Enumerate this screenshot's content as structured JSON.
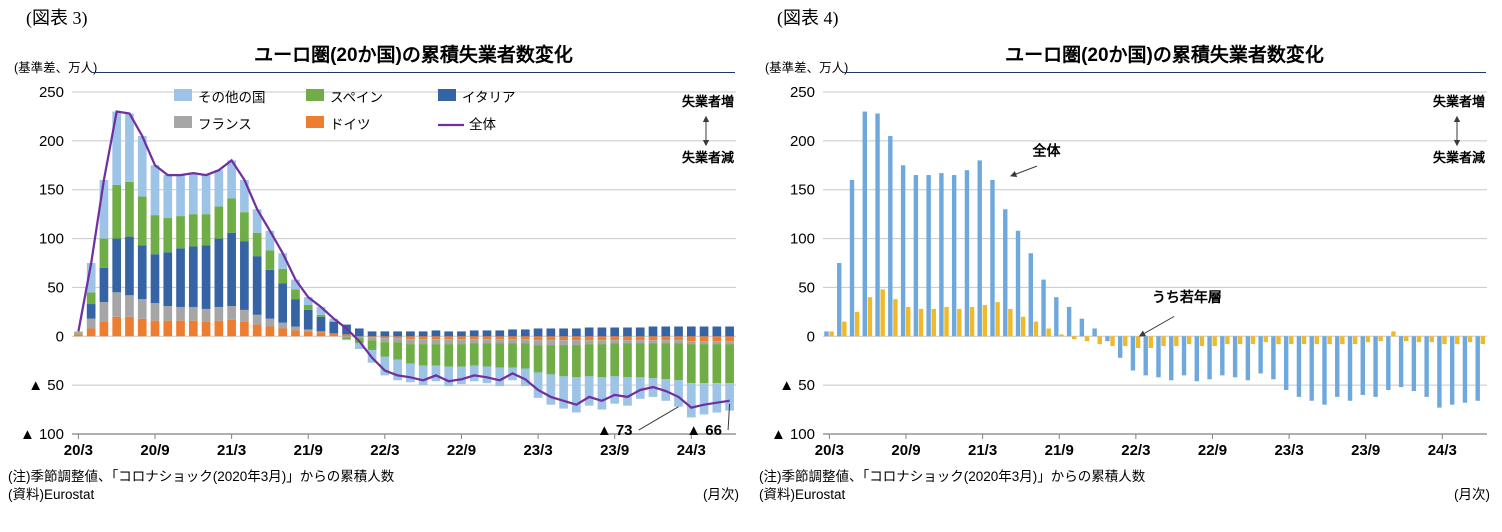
{
  "page": {
    "background": "#FFFFFF"
  },
  "chart_data": [
    {
      "figure_label": "(図表 3)",
      "title": "ユーロ圏(20か国)の累積失業者数変化",
      "unit_label": "(基準差、万人)",
      "freq_label": "(月次)",
      "notes": [
        "(注)季節調整値、「コロナショック(2020年3月)」からの累積人数",
        "(資料)Eurostat"
      ],
      "type": "bar",
      "stacked": true,
      "grid": true,
      "ylim": [
        -100,
        250
      ],
      "y_ticks": [
        250,
        200,
        150,
        100,
        50,
        0,
        -50,
        -100
      ],
      "x": [
        "20/3",
        "20/4",
        "20/5",
        "20/6",
        "20/7",
        "20/8",
        "20/9",
        "20/10",
        "20/11",
        "20/12",
        "21/1",
        "21/2",
        "21/3",
        "21/4",
        "21/5",
        "21/6",
        "21/7",
        "21/8",
        "21/9",
        "21/10",
        "21/11",
        "21/12",
        "22/1",
        "22/2",
        "22/3",
        "22/4",
        "22/5",
        "22/6",
        "22/7",
        "22/8",
        "22/9",
        "22/10",
        "22/11",
        "22/12",
        "23/1",
        "23/2",
        "23/3",
        "23/4",
        "23/5",
        "23/6",
        "23/7",
        "23/8",
        "23/9",
        "23/10",
        "23/11",
        "23/12",
        "24/1",
        "24/2",
        "24/3",
        "24/4",
        "24/5",
        "24/6"
      ],
      "x_tick_labels": [
        "20/3",
        "20/9",
        "21/3",
        "21/9",
        "22/3",
        "22/9",
        "23/3",
        "23/9",
        "24/3"
      ],
      "series": [
        {
          "name": "ドイツ",
          "color": "#ED7D31",
          "values": [
            2,
            8,
            15,
            20,
            20,
            18,
            16,
            16,
            16,
            16,
            15,
            16,
            17,
            15,
            12,
            10,
            8,
            6,
            5,
            4,
            3,
            2,
            0,
            -1,
            -2,
            -2,
            -3,
            -3,
            -3,
            -3,
            -3,
            -3,
            -3,
            -3,
            -3,
            -3,
            -4,
            -4,
            -4,
            -4,
            -4,
            -4,
            -4,
            -4,
            -4,
            -4,
            -4,
            -4,
            -5,
            -5,
            -5,
            -5
          ]
        },
        {
          "name": "フランス",
          "color": "#A6A6A6",
          "values": [
            1,
            10,
            20,
            25,
            22,
            20,
            18,
            15,
            14,
            14,
            13,
            14,
            14,
            12,
            10,
            8,
            6,
            4,
            2,
            1,
            0,
            -1,
            -2,
            -3,
            -4,
            -4,
            -5,
            -5,
            -5,
            -5,
            -5,
            -4,
            -4,
            -4,
            -4,
            -4,
            -5,
            -5,
            -5,
            -5,
            -4,
            -4,
            -3,
            -3,
            -3,
            -3,
            -3,
            -3,
            -3,
            -3,
            -3,
            -3
          ]
        },
        {
          "name": "イタリア",
          "color": "#3563A4",
          "values": [
            0,
            15,
            35,
            55,
            60,
            55,
            50,
            55,
            60,
            62,
            65,
            70,
            75,
            70,
            60,
            50,
            40,
            28,
            20,
            15,
            12,
            10,
            8,
            5,
            5,
            5,
            5,
            5,
            6,
            5,
            5,
            6,
            6,
            6,
            7,
            7,
            8,
            8,
            8,
            8,
            9,
            9,
            9,
            9,
            9,
            10,
            10,
            10,
            10,
            10,
            10,
            10
          ]
        },
        {
          "name": "スペイン",
          "color": "#70AD47",
          "values": [
            1,
            12,
            30,
            55,
            56,
            50,
            40,
            35,
            33,
            33,
            32,
            33,
            35,
            30,
            24,
            20,
            15,
            10,
            5,
            2,
            0,
            -2,
            -5,
            -10,
            -15,
            -18,
            -20,
            -22,
            -22,
            -23,
            -23,
            -23,
            -24,
            -25,
            -25,
            -26,
            -28,
            -30,
            -32,
            -33,
            -33,
            -34,
            -34,
            -35,
            -35,
            -36,
            -37,
            -38,
            -40,
            -40,
            -40,
            -40
          ]
        },
        {
          "name": "その他の国",
          "color": "#9DC3E6",
          "values": [
            1,
            30,
            60,
            75,
            70,
            62,
            51,
            44,
            42,
            42,
            40,
            37,
            39,
            33,
            24,
            20,
            16,
            10,
            8,
            8,
            3,
            -1,
            -6,
            -13,
            -19,
            -21,
            -19,
            -20,
            -16,
            -20,
            -18,
            -16,
            -17,
            -19,
            -13,
            -18,
            -26,
            -31,
            -33,
            -36,
            -30,
            -33,
            -28,
            -29,
            -22,
            -19,
            -22,
            -27,
            -35,
            -32,
            -30,
            -28
          ]
        }
      ],
      "line_series": {
        "name": "全体",
        "color": "#7030A0",
        "values": [
          5,
          75,
          160,
          230,
          228,
          205,
          175,
          165,
          165,
          167,
          165,
          170,
          180,
          160,
          130,
          108,
          85,
          58,
          40,
          30,
          18,
          8,
          -5,
          -22,
          -35,
          -40,
          -42,
          -45,
          -40,
          -46,
          -44,
          -40,
          -42,
          -45,
          -38,
          -44,
          -55,
          -62,
          -66,
          -70,
          -62,
          -66,
          -60,
          -62,
          -55,
          -52,
          -56,
          -62,
          -73,
          -70,
          -68,
          -66
        ]
      },
      "legend": {
        "position": "top-inside",
        "rows": [
          [
            {
              "label": "その他の国",
              "color": "#9DC3E6",
              "type": "box"
            },
            {
              "label": "スペイン",
              "color": "#70AD47",
              "type": "box"
            },
            {
              "label": "イタリア",
              "color": "#3563A4",
              "type": "box"
            }
          ],
          [
            {
              "label": "フランス",
              "color": "#A6A6A6",
              "type": "box"
            },
            {
              "label": "ドイツ",
              "color": "#ED7D31",
              "type": "box"
            },
            {
              "label": "全体",
              "color": "#7030A0",
              "type": "line"
            }
          ]
        ]
      },
      "flow_labels": {
        "increase": "失業者増",
        "decrease": "失業者減"
      },
      "annotations": [
        {
          "text": "▲ 73",
          "label_x": "23/9",
          "label_value": -97,
          "target_x": "24/2",
          "target_value": -72
        },
        {
          "text": "▲ 66",
          "label_x": "24/4",
          "label_value": -97,
          "target_x": "24/6",
          "target_value": -69
        }
      ]
    },
    {
      "figure_label": "(図表 4)",
      "title": "ユーロ圏(20か国)の累積失業者数変化",
      "unit_label": "(基準差、万人)",
      "freq_label": "(月次)",
      "notes": [
        "(注)季節調整値、「コロナショック(2020年3月)」からの累積人数",
        "(資料)Eurostat"
      ],
      "type": "bar",
      "stacked": false,
      "grid": true,
      "ylim": [
        -100,
        250
      ],
      "y_ticks": [
        250,
        200,
        150,
        100,
        50,
        0,
        -50,
        -100
      ],
      "x": [
        "20/3",
        "20/4",
        "20/5",
        "20/6",
        "20/7",
        "20/8",
        "20/9",
        "20/10",
        "20/11",
        "20/12",
        "21/1",
        "21/2",
        "21/3",
        "21/4",
        "21/5",
        "21/6",
        "21/7",
        "21/8",
        "21/9",
        "21/10",
        "21/11",
        "21/12",
        "22/1",
        "22/2",
        "22/3",
        "22/4",
        "22/5",
        "22/6",
        "22/7",
        "22/8",
        "22/9",
        "22/10",
        "22/11",
        "22/12",
        "23/1",
        "23/2",
        "23/3",
        "23/4",
        "23/5",
        "23/6",
        "23/7",
        "23/8",
        "23/9",
        "23/10",
        "23/11",
        "23/12",
        "24/1",
        "24/2",
        "24/3",
        "24/4",
        "24/5",
        "24/6"
      ],
      "x_tick_labels": [
        "20/3",
        "20/9",
        "21/3",
        "21/9",
        "22/3",
        "22/9",
        "23/3",
        "23/9",
        "24/3"
      ],
      "series": [
        {
          "name": "全体",
          "color": "#6FA8DC",
          "values": [
            5,
            75,
            160,
            230,
            228,
            205,
            175,
            165,
            165,
            167,
            165,
            170,
            180,
            160,
            130,
            108,
            85,
            58,
            40,
            30,
            18,
            8,
            -5,
            -22,
            -35,
            -40,
            -42,
            -45,
            -40,
            -46,
            -44,
            -40,
            -42,
            -45,
            -38,
            -44,
            -55,
            -62,
            -66,
            -70,
            -62,
            -66,
            -60,
            -62,
            -55,
            -52,
            -56,
            -62,
            -73,
            -70,
            -68,
            -66
          ]
        },
        {
          "name": "うち若年層",
          "color": "#F0B929",
          "values": [
            5,
            15,
            25,
            40,
            48,
            38,
            30,
            28,
            28,
            30,
            28,
            30,
            32,
            35,
            28,
            20,
            15,
            8,
            2,
            -3,
            -5,
            -8,
            -10,
            -10,
            -12,
            -12,
            -10,
            -10,
            -8,
            -10,
            -10,
            -8,
            -8,
            -8,
            -6,
            -8,
            -8,
            -8,
            -8,
            -8,
            -8,
            -8,
            -6,
            -5,
            5,
            -5,
            -6,
            -6,
            -8,
            -8,
            -6,
            -8
          ]
        }
      ],
      "flow_labels": {
        "increase": "失業者増",
        "decrease": "失業者減"
      },
      "point_labels": [
        {
          "text": "全体",
          "label_x": "21/8",
          "label_value": 185,
          "target_x": "21/5",
          "target_value": 163
        },
        {
          "text": "うち若年層",
          "label_x": "22/7",
          "label_value": 35,
          "target_x": "22/3",
          "target_value": -2
        }
      ]
    }
  ]
}
